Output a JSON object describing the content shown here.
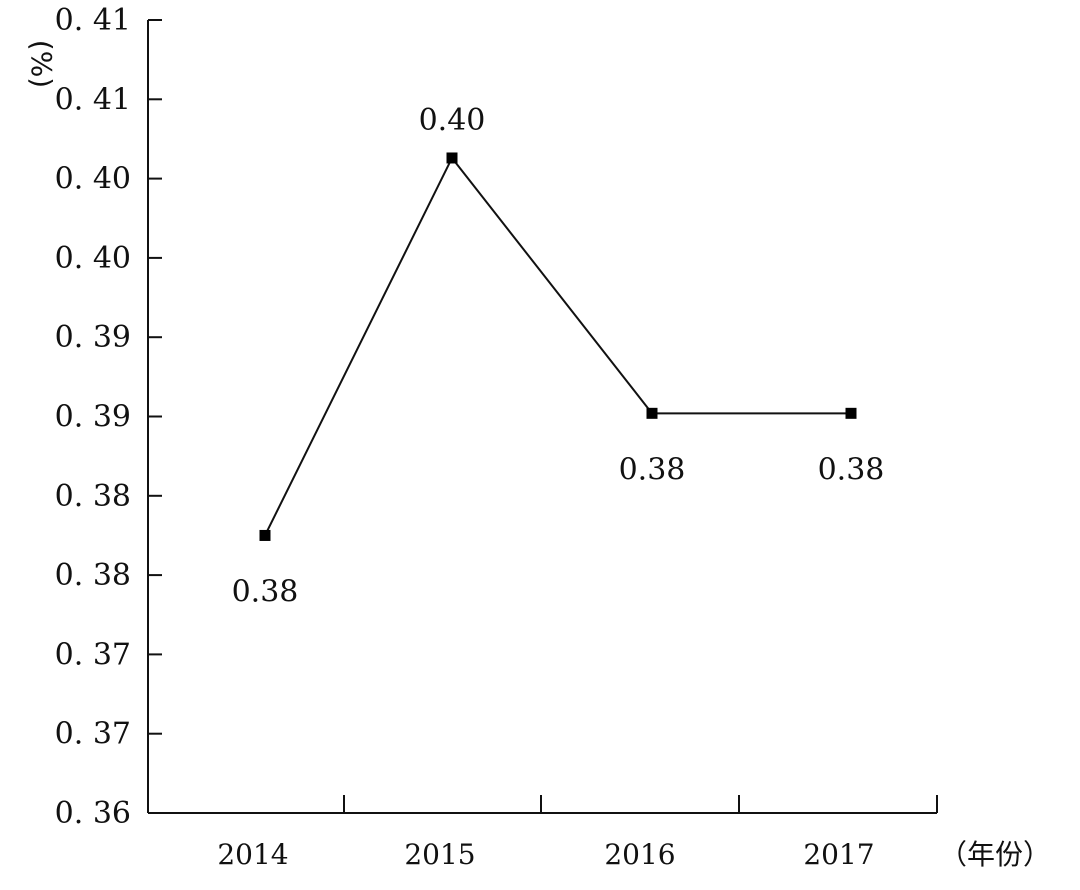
{
  "chart_data": {
    "type": "line",
    "categories": [
      "2014",
      "2015",
      "2016",
      "2017"
    ],
    "series": [
      {
        "values": [
          0.3775,
          0.4013,
          0.3852,
          0.3852
        ]
      }
    ],
    "data_labels": [
      "0.38",
      "0.40",
      "0.38",
      "0.38"
    ],
    "y_ticks": [
      0.36,
      0.365,
      0.37,
      0.375,
      0.38,
      0.385,
      0.39,
      0.395,
      0.4,
      0.405,
      0.41
    ],
    "y_tick_labels": [
      "0. 36",
      "0. 37",
      "0. 37",
      "0. 38",
      "0. 38",
      "0. 39",
      "0. 39",
      "0. 40",
      "0. 40",
      "0. 41",
      "0. 41"
    ],
    "ylim": [
      0.36,
      0.41
    ],
    "y_unit": "(%)",
    "x_unit": "（年份）",
    "grid": false,
    "colors": {
      "line": "#111111",
      "marker": "#000000"
    }
  }
}
